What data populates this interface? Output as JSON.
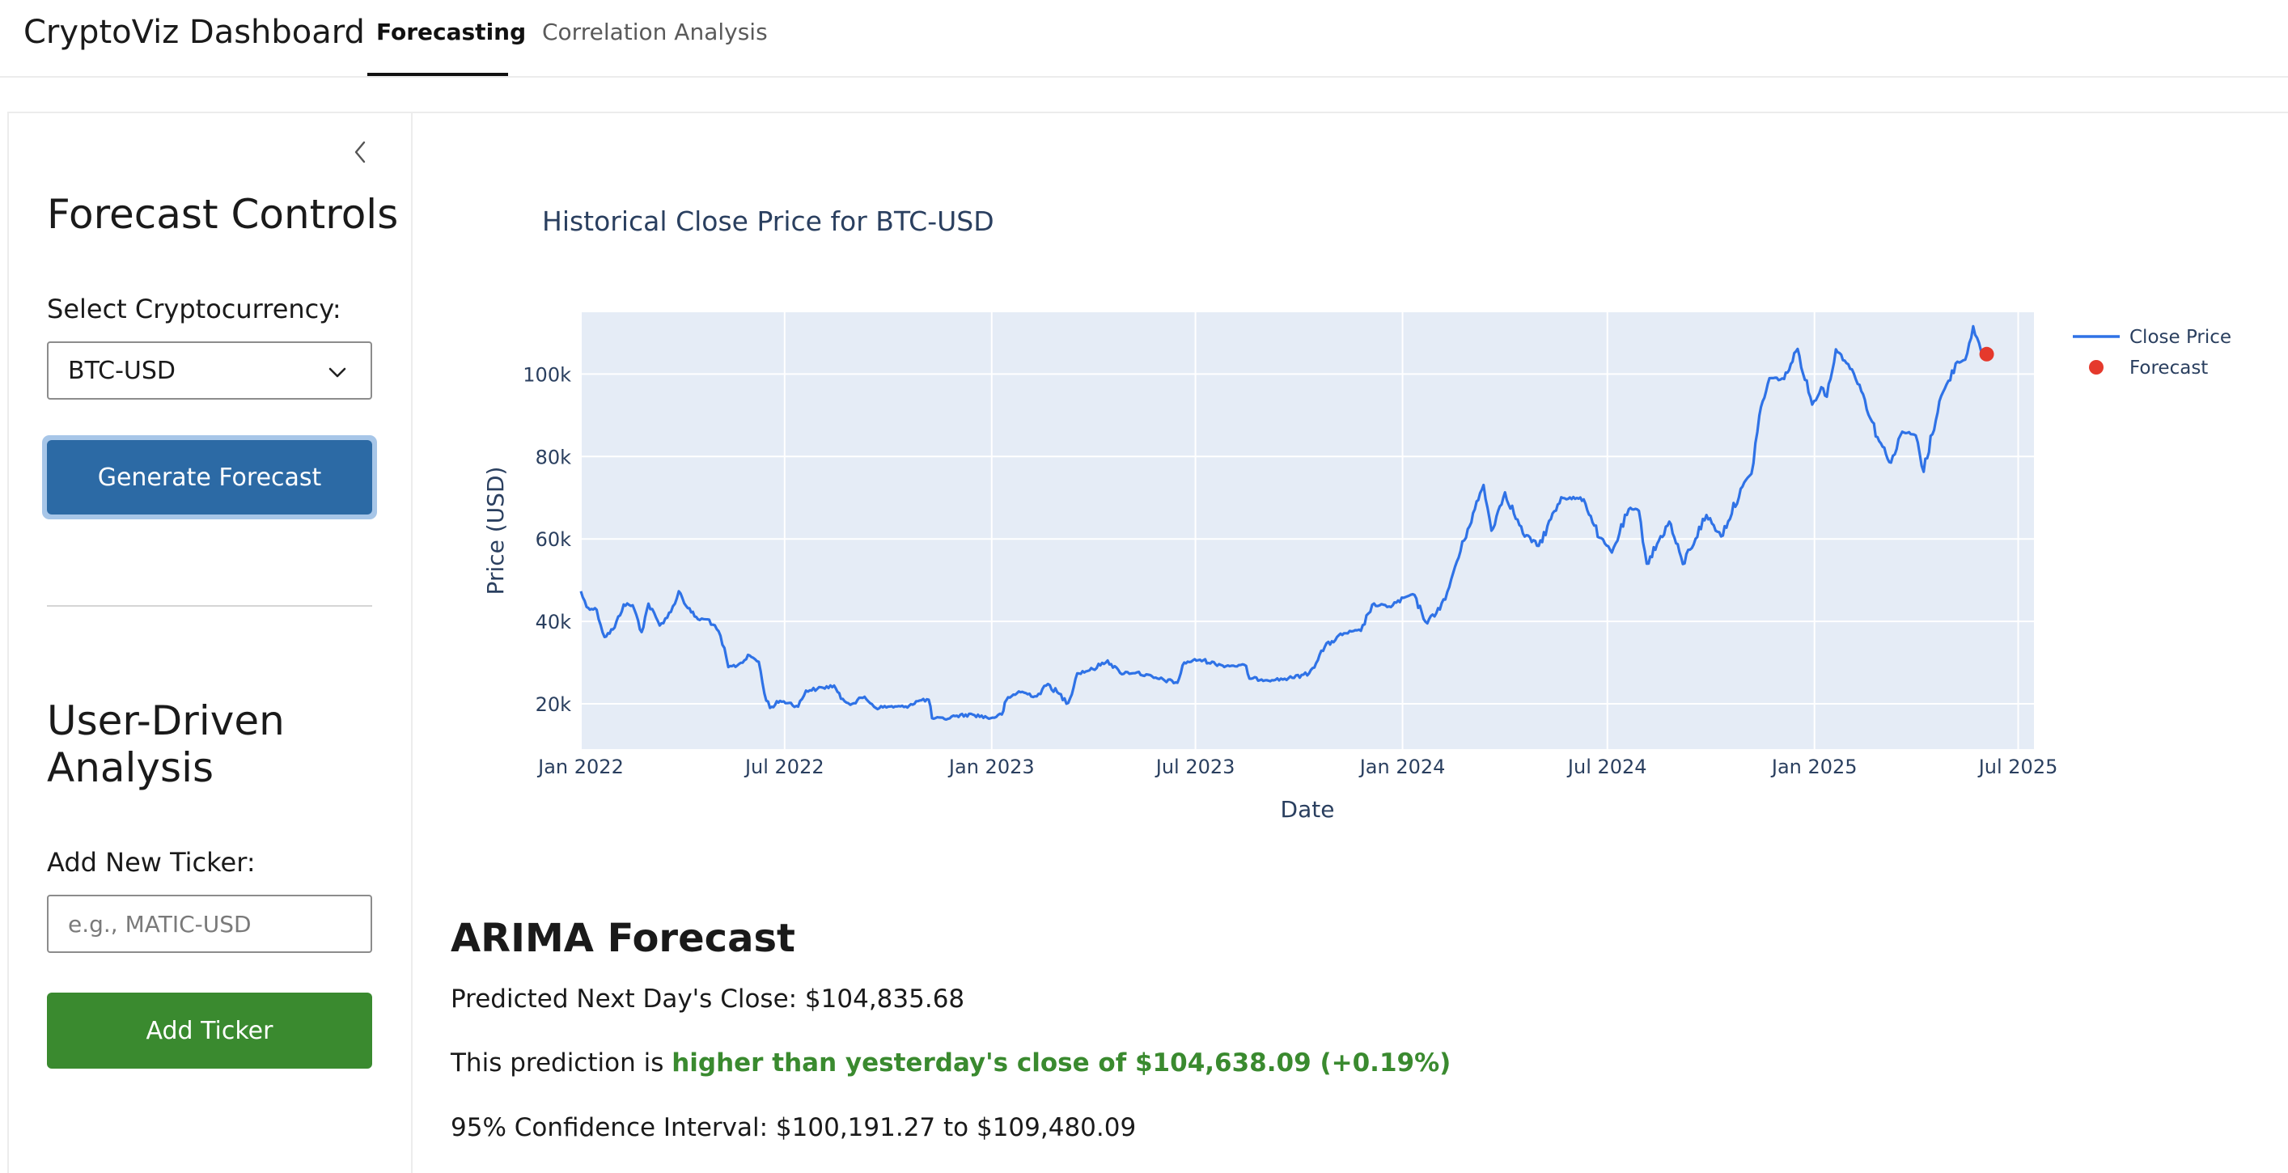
{
  "app": {
    "title": "CryptoViz Dashboard",
    "tabs": [
      {
        "label": "Forecasting",
        "active": true
      },
      {
        "label": "Correlation Analysis",
        "active": false
      }
    ]
  },
  "sidebar": {
    "collapse_icon": "chevron-left-icon",
    "forecast_controls": {
      "heading": "Forecast Controls",
      "select_label": "Select Cryptocurrency:",
      "selected_value": "BTC-USD",
      "generate_button": "Generate Forecast"
    },
    "user_analysis": {
      "heading_line1": "User-Driven",
      "heading_line2": "Analysis",
      "ticker_label": "Add New Ticker:",
      "ticker_placeholder": "e.g., MATIC-USD",
      "ticker_value": "",
      "add_button": "Add Ticker"
    },
    "colors": {
      "primary": "#2c6aa5",
      "success": "#3a8a2f"
    }
  },
  "chart_data": {
    "type": "line",
    "title": "Historical Close Price for BTC-USD",
    "xlabel": "Date",
    "ylabel": "Price (USD)",
    "x_ticks": [
      "Jan 2022",
      "Jul 2022",
      "Jan 2023",
      "Jul 2023",
      "Jan 2024",
      "Jul 2024",
      "Jan 2025",
      "Jul 2025"
    ],
    "y_ticks": [
      "20k",
      "40k",
      "60k",
      "80k",
      "100k"
    ],
    "y_tick_values": [
      20000,
      40000,
      60000,
      80000,
      100000
    ],
    "xlim": [
      "2022-01-01",
      "2025-07-15"
    ],
    "ylim": [
      9000,
      115000
    ],
    "grid": true,
    "legend_placement": "top-right",
    "plot_background": "#e5ecf6",
    "series": [
      {
        "name": "Close Price",
        "color": "#2f72e6",
        "points": [
          [
            "2022-01-01",
            47300
          ],
          [
            "2022-01-06",
            43500
          ],
          [
            "2022-01-15",
            42800
          ],
          [
            "2022-01-22",
            36200
          ],
          [
            "2022-01-31",
            38500
          ],
          [
            "2022-02-08",
            44100
          ],
          [
            "2022-02-16",
            43900
          ],
          [
            "2022-02-24",
            37400
          ],
          [
            "2022-03-02",
            44300
          ],
          [
            "2022-03-12",
            39000
          ],
          [
            "2022-03-22",
            42300
          ],
          [
            "2022-03-29",
            47300
          ],
          [
            "2022-04-06",
            43200
          ],
          [
            "2022-04-15",
            40500
          ],
          [
            "2022-04-25",
            40400
          ],
          [
            "2022-05-05",
            36500
          ],
          [
            "2022-05-12",
            28900
          ],
          [
            "2022-05-20",
            29300
          ],
          [
            "2022-05-31",
            31700
          ],
          [
            "2022-06-08",
            30200
          ],
          [
            "2022-06-13",
            22500
          ],
          [
            "2022-06-18",
            19000
          ],
          [
            "2022-06-27",
            20700
          ],
          [
            "2022-07-05",
            20200
          ],
          [
            "2022-07-13",
            19300
          ],
          [
            "2022-07-20",
            23200
          ],
          [
            "2022-07-30",
            23600
          ],
          [
            "2022-08-14",
            24400
          ],
          [
            "2022-08-20",
            21200
          ],
          [
            "2022-08-30",
            20000
          ],
          [
            "2022-09-10",
            21700
          ],
          [
            "2022-09-20",
            19000
          ],
          [
            "2022-10-01",
            19300
          ],
          [
            "2022-10-15",
            19200
          ],
          [
            "2022-10-29",
            20800
          ],
          [
            "2022-11-06",
            21000
          ],
          [
            "2022-11-09",
            16500
          ],
          [
            "2022-11-20",
            16300
          ],
          [
            "2022-12-01",
            17100
          ],
          [
            "2022-12-15",
            17400
          ],
          [
            "2022-12-31",
            16500
          ],
          [
            "2023-01-10",
            17400
          ],
          [
            "2023-01-14",
            20900
          ],
          [
            "2023-01-25",
            23000
          ],
          [
            "2023-02-10",
            21800
          ],
          [
            "2023-02-20",
            24800
          ],
          [
            "2023-03-10",
            20200
          ],
          [
            "2023-03-18",
            27400
          ],
          [
            "2023-04-01",
            28400
          ],
          [
            "2023-04-14",
            30500
          ],
          [
            "2023-04-25",
            27500
          ],
          [
            "2023-05-10",
            27600
          ],
          [
            "2023-05-25",
            26300
          ],
          [
            "2023-06-15",
            25100
          ],
          [
            "2023-06-21",
            30000
          ],
          [
            "2023-07-05",
            30700
          ],
          [
            "2023-07-25",
            29300
          ],
          [
            "2023-08-15",
            29200
          ],
          [
            "2023-08-18",
            26100
          ],
          [
            "2023-09-10",
            25800
          ],
          [
            "2023-09-25",
            26300
          ],
          [
            "2023-10-10",
            27400
          ],
          [
            "2023-10-24",
            33900
          ],
          [
            "2023-11-10",
            37100
          ],
          [
            "2023-11-25",
            37700
          ],
          [
            "2023-12-05",
            44000
          ],
          [
            "2023-12-20",
            43600
          ],
          [
            "2024-01-10",
            46600
          ],
          [
            "2024-01-23",
            39500
          ],
          [
            "2024-02-08",
            45300
          ],
          [
            "2024-02-15",
            51800
          ],
          [
            "2024-02-28",
            62400
          ],
          [
            "2024-03-13",
            73100
          ],
          [
            "2024-03-20",
            62000
          ],
          [
            "2024-04-01",
            71300
          ],
          [
            "2024-04-17",
            61300
          ],
          [
            "2024-05-01",
            58300
          ],
          [
            "2024-05-21",
            70100
          ],
          [
            "2024-06-10",
            69600
          ],
          [
            "2024-06-24",
            60300
          ],
          [
            "2024-07-05",
            56700
          ],
          [
            "2024-07-20",
            67200
          ],
          [
            "2024-07-29",
            66800
          ],
          [
            "2024-08-05",
            54000
          ],
          [
            "2024-08-25",
            64200
          ],
          [
            "2024-09-06",
            53900
          ],
          [
            "2024-09-27",
            65800
          ],
          [
            "2024-10-10",
            60600
          ],
          [
            "2024-10-29",
            72700
          ],
          [
            "2024-11-06",
            75800
          ],
          [
            "2024-11-13",
            90000
          ],
          [
            "2024-11-22",
            99000
          ],
          [
            "2024-12-05",
            98800
          ],
          [
            "2024-12-17",
            106100
          ],
          [
            "2024-12-30",
            92600
          ],
          [
            "2025-01-07",
            96800
          ],
          [
            "2025-01-12",
            94500
          ],
          [
            "2025-01-20",
            106000
          ],
          [
            "2025-01-31",
            102400
          ],
          [
            "2025-02-10",
            97400
          ],
          [
            "2025-02-26",
            84700
          ],
          [
            "2025-03-10",
            78500
          ],
          [
            "2025-03-20",
            86000
          ],
          [
            "2025-04-01",
            85100
          ],
          [
            "2025-04-08",
            76300
          ],
          [
            "2025-04-22",
            93400
          ],
          [
            "2025-05-08",
            103000
          ],
          [
            "2025-05-15",
            103500
          ],
          [
            "2025-05-22",
            111600
          ],
          [
            "2025-05-29",
            105600
          ],
          [
            "2025-06-02",
            104600
          ]
        ]
      },
      {
        "name": "Forecast",
        "color": "#e5392c",
        "points": [
          [
            "2025-06-03",
            104835.68
          ]
        ]
      }
    ]
  },
  "forecast": {
    "title": "ARIMA Forecast",
    "predicted_line": "Predicted Next Day's Close: $104,835.68",
    "comparison_prefix": "This prediction is ",
    "comparison_highlight": "higher than yesterday's close of $104,638.09 (+0.19%)",
    "confidence_line": "95% Confidence Interval: $100,191.27 to $109,480.09"
  }
}
